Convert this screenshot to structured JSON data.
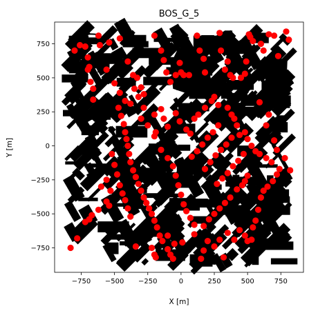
{
  "chart_data": {
    "type": "scatter",
    "title": "BOS_G_5",
    "xlabel": "X [m]",
    "ylabel": "Y [m]",
    "xlim": [
      -950,
      920
    ],
    "ylim": [
      -930,
      910
    ],
    "xticks": [
      -750,
      -500,
      -250,
      0,
      250,
      500,
      750
    ],
    "yticks": [
      -750,
      -500,
      -250,
      0,
      250,
      500,
      750
    ],
    "xtick_labels": [
      "−750",
      "−500",
      "−250",
      "0",
      "250",
      "500",
      "750"
    ],
    "ytick_labels": [
      "−750",
      "−500",
      "−250",
      "0",
      "250",
      "500",
      "750"
    ],
    "grid": false,
    "legend": "none",
    "background_layer": "building footprints (black polygons)",
    "marker_color": "#ff0000",
    "building_color": "#000000",
    "series": [
      {
        "marker": "circle",
        "color": "#ff0000",
        "points": [
          [
            -800,
            700
          ],
          [
            -760,
            740
          ],
          [
            -720,
            730
          ],
          [
            -700,
            650
          ],
          [
            -690,
            580
          ],
          [
            -620,
            810
          ],
          [
            -610,
            740
          ],
          [
            -540,
            760
          ],
          [
            -560,
            560
          ],
          [
            -460,
            790
          ],
          [
            -400,
            620
          ],
          [
            -360,
            520
          ],
          [
            -330,
            500
          ],
          [
            -300,
            430
          ],
          [
            -280,
            380
          ],
          [
            -200,
            810
          ],
          [
            -150,
            700
          ],
          [
            -130,
            630
          ],
          [
            -110,
            540
          ],
          [
            -80,
            470
          ],
          [
            -40,
            520
          ],
          [
            -10,
            610
          ],
          [
            0,
            540
          ],
          [
            20,
            520
          ],
          [
            60,
            520
          ],
          [
            120,
            810
          ],
          [
            140,
            700
          ],
          [
            170,
            640
          ],
          [
            180,
            540
          ],
          [
            290,
            830
          ],
          [
            300,
            700
          ],
          [
            330,
            560
          ],
          [
            350,
            620
          ],
          [
            370,
            520
          ],
          [
            390,
            500
          ],
          [
            450,
            500
          ],
          [
            480,
            530
          ],
          [
            490,
            620
          ],
          [
            510,
            820
          ],
          [
            520,
            800
          ],
          [
            540,
            770
          ],
          [
            600,
            750
          ],
          [
            620,
            700
          ],
          [
            660,
            820
          ],
          [
            700,
            810
          ],
          [
            730,
            660
          ],
          [
            790,
            840
          ],
          [
            810,
            780
          ],
          [
            -700,
            560
          ],
          [
            -680,
            470
          ],
          [
            -660,
            420
          ],
          [
            -660,
            340
          ],
          [
            -500,
            460
          ],
          [
            -460,
            390
          ],
          [
            -420,
            330
          ],
          [
            -380,
            310
          ],
          [
            -350,
            420
          ],
          [
            -320,
            360
          ],
          [
            -300,
            200
          ],
          [
            -280,
            280
          ],
          [
            -250,
            150
          ],
          [
            -200,
            230
          ],
          [
            -190,
            100
          ],
          [
            -150,
            270
          ],
          [
            -130,
            200
          ],
          [
            -100,
            140
          ],
          [
            -40,
            240
          ],
          [
            -10,
            180
          ],
          [
            40,
            120
          ],
          [
            70,
            90
          ],
          [
            100,
            200
          ],
          [
            130,
            230
          ],
          [
            180,
            280
          ],
          [
            230,
            330
          ],
          [
            250,
            360
          ],
          [
            280,
            300
          ],
          [
            350,
            280
          ],
          [
            380,
            230
          ],
          [
            400,
            200
          ],
          [
            420,
            150
          ],
          [
            440,
            80
          ],
          [
            480,
            100
          ],
          [
            500,
            50
          ],
          [
            530,
            0
          ],
          [
            560,
            -40
          ],
          [
            590,
            320
          ],
          [
            640,
            150
          ],
          [
            660,
            230
          ],
          [
            700,
            40
          ],
          [
            720,
            -30
          ],
          [
            780,
            -90
          ],
          [
            820,
            -180
          ],
          [
            -470,
            280
          ],
          [
            -450,
            220
          ],
          [
            -430,
            160
          ],
          [
            -420,
            100
          ],
          [
            -410,
            50
          ],
          [
            -400,
            0
          ],
          [
            -390,
            -60
          ],
          [
            -380,
            -120
          ],
          [
            -360,
            -180
          ],
          [
            -340,
            -230
          ],
          [
            -320,
            -280
          ],
          [
            -300,
            -330
          ],
          [
            -280,
            -380
          ],
          [
            -260,
            -420
          ],
          [
            -240,
            -460
          ],
          [
            -220,
            -500
          ],
          [
            -200,
            -550
          ],
          [
            -180,
            -600
          ],
          [
            -160,
            -660
          ],
          [
            -140,
            -700
          ],
          [
            -100,
            -760
          ],
          [
            -80,
            -800
          ],
          [
            -60,
            -830
          ],
          [
            -520,
            -60
          ],
          [
            -500,
            -140
          ],
          [
            -480,
            -210
          ],
          [
            -460,
            -290
          ],
          [
            -440,
            -350
          ],
          [
            -420,
            -400
          ],
          [
            -400,
            -460
          ],
          [
            -380,
            -520
          ],
          [
            -200,
            70
          ],
          [
            -150,
            -30
          ],
          [
            -100,
            -90
          ],
          [
            -60,
            -150
          ],
          [
            -40,
            -220
          ],
          [
            -20,
            -290
          ],
          [
            0,
            -360
          ],
          [
            20,
            -430
          ],
          [
            40,
            -480
          ],
          [
            70,
            -530
          ],
          [
            100,
            -580
          ],
          [
            -830,
            -750
          ],
          [
            -780,
            -680
          ],
          [
            -720,
            -560
          ],
          [
            -690,
            -540
          ],
          [
            -670,
            -510
          ],
          [
            -620,
            -470
          ],
          [
            -560,
            -410
          ],
          [
            -540,
            -440
          ],
          [
            -600,
            -300
          ],
          [
            -560,
            -250
          ],
          [
            -530,
            -330
          ],
          [
            -340,
            -740
          ],
          [
            -220,
            -750
          ],
          [
            -200,
            -800
          ],
          [
            -190,
            -820
          ],
          [
            -100,
            -660
          ],
          [
            -50,
            -720
          ],
          [
            10,
            -710
          ],
          [
            100,
            -650
          ],
          [
            150,
            -830
          ],
          [
            170,
            -770
          ],
          [
            200,
            -700
          ],
          [
            250,
            -740
          ],
          [
            290,
            -690
          ],
          [
            320,
            -820
          ],
          [
            350,
            -640
          ],
          [
            400,
            -690
          ],
          [
            440,
            -620
          ],
          [
            480,
            -660
          ],
          [
            500,
            -700
          ],
          [
            530,
            -690
          ],
          [
            540,
            -600
          ],
          [
            560,
            -550
          ],
          [
            580,
            -470
          ],
          [
            600,
            -380
          ],
          [
            620,
            -330
          ],
          [
            650,
            -300
          ],
          [
            690,
            -260
          ],
          [
            720,
            -210
          ],
          [
            740,
            -170
          ],
          [
            680,
            -120
          ],
          [
            640,
            -90
          ],
          [
            590,
            -60
          ],
          [
            500,
            -220
          ],
          [
            480,
            -260
          ],
          [
            460,
            -290
          ],
          [
            420,
            -320
          ],
          [
            370,
            -380
          ],
          [
            330,
            -420
          ],
          [
            290,
            -460
          ],
          [
            250,
            -500
          ],
          [
            210,
            -540
          ],
          [
            170,
            -590
          ],
          [
            270,
            -280
          ],
          [
            310,
            -240
          ],
          [
            350,
            -200
          ],
          [
            390,
            -150
          ],
          [
            430,
            -110
          ],
          [
            470,
            -60
          ],
          [
            180,
            -170
          ],
          [
            220,
            -120
          ],
          [
            260,
            -70
          ],
          [
            300,
            -30
          ],
          [
            340,
            10
          ],
          [
            380,
            60
          ],
          [
            80,
            -80
          ],
          [
            120,
            -40
          ],
          [
            160,
            10
          ],
          [
            200,
            60
          ],
          [
            240,
            100
          ],
          [
            280,
            150
          ]
        ]
      }
    ]
  }
}
